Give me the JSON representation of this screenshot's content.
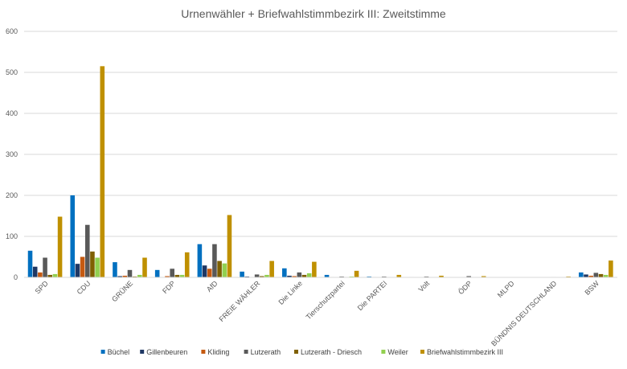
{
  "chart_data": {
    "type": "bar",
    "title": "Urnenwähler + Briefwahlstimmbezirk III: Zweitstimme",
    "xlabel": "",
    "ylabel": "",
    "ylim": [
      0,
      600
    ],
    "yticks": [
      0,
      100,
      200,
      300,
      400,
      500,
      600
    ],
    "grid": true,
    "legend_position": "bottom",
    "categories": [
      "SPD",
      "CDU",
      "GRÜNE",
      "FDP",
      "AfD",
      "FREIE WÄHLER",
      "Die Linke",
      "Tierschutzpartei",
      "Die PARTEI",
      "Volt",
      "ÖDP",
      "MLPD",
      "BÜNDNIS DEUTSCHLAND",
      "BSW"
    ],
    "series": [
      {
        "name": "Büchel",
        "color": "#0070C0",
        "values": [
          65,
          200,
          37,
          18,
          81,
          14,
          22,
          6,
          2,
          1,
          0,
          0,
          0,
          12
        ]
      },
      {
        "name": "Gillenbeuren",
        "color": "#1F3864",
        "values": [
          26,
          33,
          3,
          1,
          29,
          2,
          4,
          1,
          1,
          0,
          0,
          0,
          0,
          7
        ]
      },
      {
        "name": "Kliding",
        "color": "#C55A11",
        "values": [
          12,
          50,
          4,
          3,
          21,
          1,
          3,
          0,
          0,
          0,
          0,
          0,
          0,
          4
        ]
      },
      {
        "name": "Lutzerath",
        "color": "#595959",
        "values": [
          48,
          128,
          18,
          21,
          81,
          7,
          12,
          2,
          2,
          2,
          3,
          0,
          1,
          11
        ]
      },
      {
        "name": "Lutzerath - Driesch",
        "color": "#7F6000",
        "values": [
          6,
          63,
          2,
          6,
          40,
          3,
          6,
          1,
          1,
          0,
          0,
          0,
          0,
          8
        ]
      },
      {
        "name": "Weiler",
        "color": "#92D050",
        "values": [
          8,
          48,
          6,
          6,
          34,
          6,
          10,
          2,
          0,
          1,
          0,
          0,
          0,
          6
        ]
      },
      {
        "name": "Briefwahlstimmbezirk III",
        "color": "#BF9000",
        "values": [
          148,
          515,
          48,
          61,
          152,
          40,
          38,
          16,
          6,
          4,
          3,
          0,
          2,
          41
        ]
      }
    ]
  }
}
